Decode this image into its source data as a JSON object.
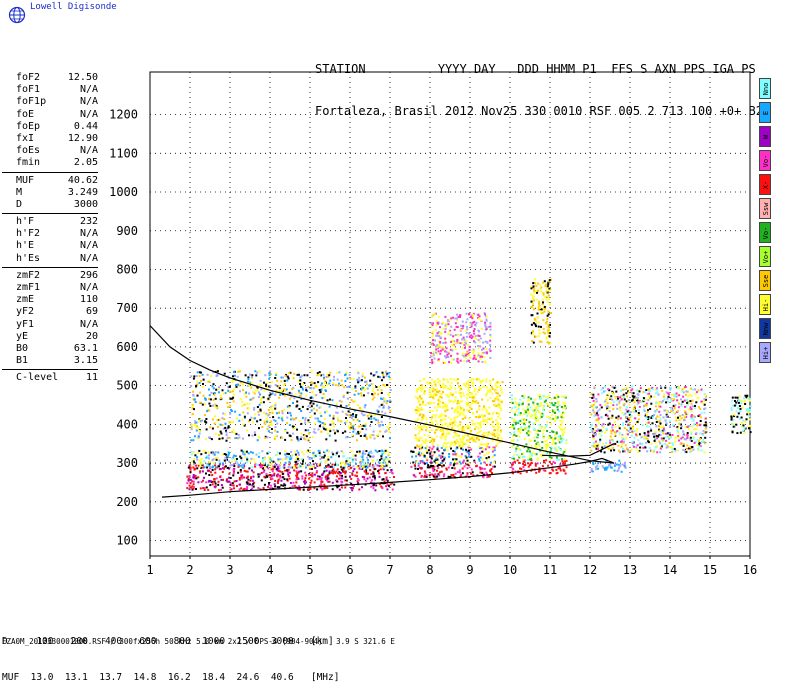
{
  "brand": {
    "name": "Lowell Digisonde"
  },
  "header": {
    "line1": "STATION          YYYY DAY   DDD HHMM P1  FFS S AXN PPS IGA PS",
    "line2": "Fortaleza, Brasil 2012 Nov25 330 0010 RSF 005 2 713 100 +0+ B2"
  },
  "params": {
    "group1": [
      {
        "name": "foF2",
        "value": "12.50"
      },
      {
        "name": "foF1",
        "value": "N/A"
      },
      {
        "name": "foF1p",
        "value": "N/A"
      },
      {
        "name": "foE",
        "value": "N/A"
      },
      {
        "name": "foEp",
        "value": "0.44"
      },
      {
        "name": "fxI",
        "value": "12.90"
      },
      {
        "name": "foEs",
        "value": "N/A"
      },
      {
        "name": "fmin",
        "value": "2.05"
      }
    ],
    "group2": [
      {
        "name": "MUF",
        "value": "40.62"
      },
      {
        "name": "M",
        "value": "3.249"
      },
      {
        "name": "D",
        "value": "3000"
      }
    ],
    "group3": [
      {
        "name": "h'F",
        "value": "232"
      },
      {
        "name": "h'F2",
        "value": "N/A"
      },
      {
        "name": "h'E",
        "value": "N/A"
      },
      {
        "name": "h'Es",
        "value": "N/A"
      }
    ],
    "group4": [
      {
        "name": "zmF2",
        "value": "296"
      },
      {
        "name": "zmF1",
        "value": "N/A"
      },
      {
        "name": "zmE",
        "value": "110"
      },
      {
        "name": "yF2",
        "value": "69"
      },
      {
        "name": "yF1",
        "value": "N/A"
      },
      {
        "name": "yE",
        "value": "20"
      },
      {
        "name": "B0",
        "value": "63.1"
      },
      {
        "name": "B1",
        "value": "3.15"
      }
    ],
    "group5": [
      {
        "name": "C-level",
        "value": "11"
      }
    ]
  },
  "legend": [
    {
      "label": "Nno",
      "color": "#7fffff"
    },
    {
      "label": "E",
      "color": "#18a8ff"
    },
    {
      "label": "W",
      "color": "#a000c8"
    },
    {
      "label": "Vo-",
      "color": "#ff30c8"
    },
    {
      "label": "X-",
      "color": "#ff1010"
    },
    {
      "label": "Ssw",
      "color": "#ffb0b0"
    },
    {
      "label": "Vo-",
      "color": "#20b020"
    },
    {
      "label": "Vo+",
      "color": "#a8ff30"
    },
    {
      "label": "Sse",
      "color": "#ffc800"
    },
    {
      "label": "Hi-",
      "color": "#ffff30"
    },
    {
      "label": "Nnw",
      "color": "#1038a0"
    },
    {
      "label": "Hi+",
      "color": "#a8a8ff"
    }
  ],
  "muf_table": {
    "line1": "D     100   200   400   600   800  1000  1500  3000   [km]",
    "line2": "MUF  13.0  13.1  13.7  14.8  16.2  18.4  24.6  40.6   [MHz]"
  },
  "footer": "FZA0M_2012330001000.RSF / 300fx256h 50 kHz 5.0 km 2x2 / DPS-4 (904-904)   3.9 S 321.6 E",
  "chart_data": {
    "type": "scatter",
    "title": "",
    "xlabel": "",
    "ylabel": "",
    "xlim": [
      1,
      16
    ],
    "ylim": [
      60,
      1310
    ],
    "x_ticks": [
      1,
      2,
      3,
      4,
      5,
      6,
      7,
      8,
      9,
      10,
      11,
      12,
      13,
      14,
      15,
      16
    ],
    "y_ticks": [
      100,
      200,
      300,
      400,
      500,
      600,
      700,
      800,
      900,
      1000,
      1100,
      1200
    ],
    "grid": true,
    "echo_regions": [
      {
        "x": [
          1.9,
          7.1
        ],
        "y": [
          232,
          300
        ],
        "colors": [
          "#ff1010",
          "#000000",
          "#ff30c8",
          "#ff1010",
          "#a000c8"
        ]
      },
      {
        "x": [
          2.0,
          7.0
        ],
        "y": [
          290,
          335
        ],
        "colors": [
          "#7fffff",
          "#18a8ff",
          "#000000",
          "#ffff30",
          "#a8a8ff"
        ]
      },
      {
        "x": [
          7.5,
          9.6
        ],
        "y": [
          265,
          300
        ],
        "colors": [
          "#ff1010",
          "#ff30c8",
          "#000000"
        ]
      },
      {
        "x": [
          7.5,
          9.6
        ],
        "y": [
          300,
          345
        ],
        "colors": [
          "#ffff30",
          "#ff30c8",
          "#000000",
          "#18a8ff"
        ]
      },
      {
        "x": [
          7.6,
          9.8
        ],
        "y": [
          345,
          520
        ],
        "colors": [
          "#ffff30",
          "#ffff30",
          "#ffc800",
          "#ffff30"
        ]
      },
      {
        "x": [
          10.0,
          11.4
        ],
        "y": [
          275,
          310
        ],
        "colors": [
          "#ff1010",
          "#ff30c8",
          "#ff1010"
        ]
      },
      {
        "x": [
          10.0,
          11.4
        ],
        "y": [
          310,
          480
        ],
        "colors": [
          "#ffff30",
          "#20b020",
          "#7fffff",
          "#ffff30"
        ]
      },
      {
        "x": [
          12.0,
          12.9
        ],
        "y": [
          280,
          310
        ],
        "colors": [
          "#a8a8ff",
          "#18a8ff"
        ]
      },
      {
        "x": [
          12.0,
          14.9
        ],
        "y": [
          330,
          500
        ],
        "colors": [
          "#ffff30",
          "#7fffff",
          "#000000",
          "#ffc800",
          "#ff30c8",
          "#a8a8ff"
        ]
      },
      {
        "x": [
          2.0,
          7.0
        ],
        "y": [
          360,
          540
        ],
        "colors": [
          "#ffff30",
          "#a8a8ff",
          "#000000",
          "#18a8ff",
          "#ffc800"
        ]
      },
      {
        "x": [
          8.0,
          9.5
        ],
        "y": [
          560,
          690
        ],
        "colors": [
          "#a8a8ff",
          "#ffff30",
          "#ff30c8"
        ]
      },
      {
        "x": [
          10.5,
          11.0
        ],
        "y": [
          610,
          780
        ],
        "colors": [
          "#ffc800",
          "#000000",
          "#ffff30"
        ]
      },
      {
        "x": [
          15.5,
          16.0
        ],
        "y": [
          380,
          480
        ],
        "colors": [
          "#000000",
          "#7fffff",
          "#ffff30"
        ]
      }
    ],
    "trace_lower": {
      "x": [
        1.3,
        2,
        3,
        4,
        5,
        6,
        7,
        8,
        9,
        10,
        11,
        11.6,
        12,
        12.3,
        12.6
      ],
      "y": [
        212,
        217,
        226,
        232,
        238,
        244,
        250,
        257,
        265,
        275,
        288,
        297,
        304,
        312,
        300
      ]
    },
    "trace_upper": {
      "x": [
        1.0,
        1.5,
        2,
        2.5,
        3,
        4,
        5,
        6,
        7,
        8,
        9,
        10,
        11,
        12,
        12.6
      ],
      "y": [
        655,
        600,
        565,
        540,
        520,
        488,
        462,
        440,
        420,
        398,
        375,
        352,
        328,
        306,
        300
      ]
    },
    "trace_upper_branch": {
      "x": [
        10.8,
        11.5,
        12.0,
        12.4,
        12.6
      ],
      "y": [
        320,
        318,
        320,
        340,
        350
      ]
    }
  }
}
